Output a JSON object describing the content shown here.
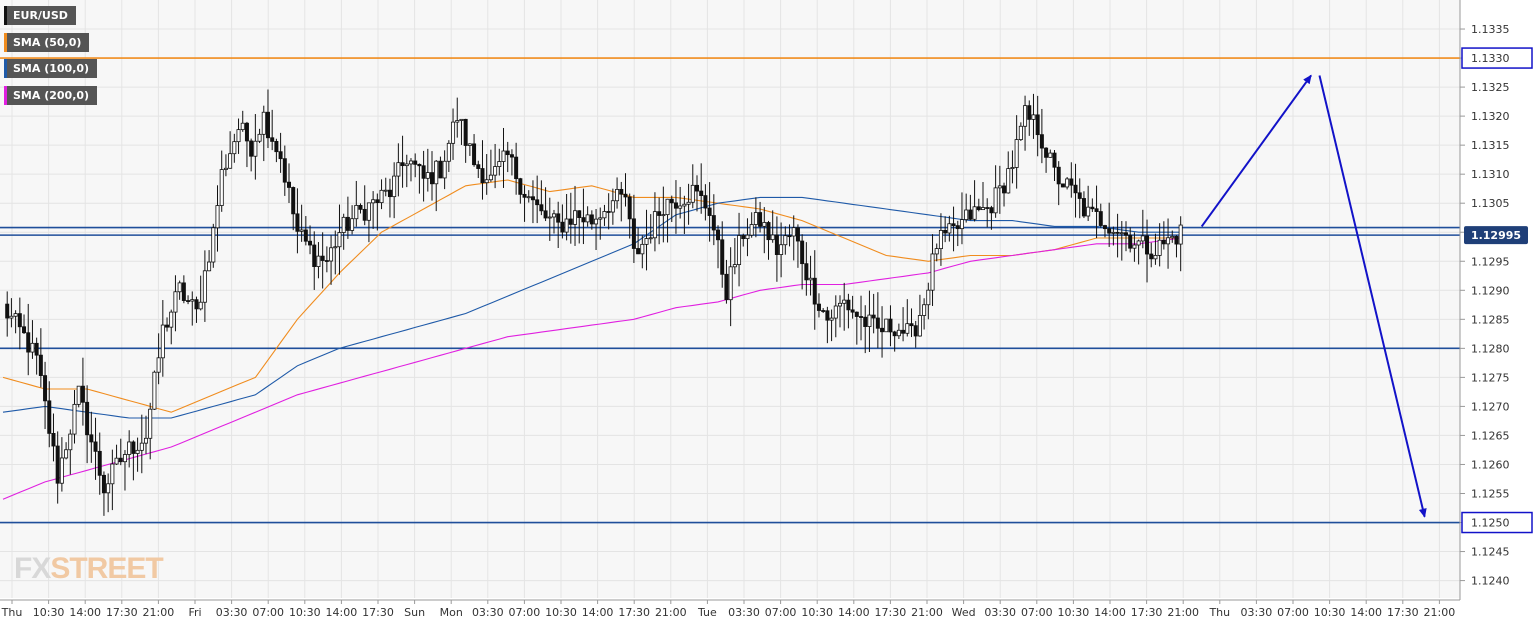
{
  "chart_data": {
    "type": "candlestick",
    "symbol": "EUR/USD",
    "last_price": "1.12995",
    "ylim": [
      1.1237,
      1.134
    ],
    "y_ticks": [
      "1.1335",
      "1.1330",
      "1.1325",
      "1.1320",
      "1.1315",
      "1.1310",
      "1.1305",
      "1.1300",
      "1.1295",
      "1.1290",
      "1.1285",
      "1.1280",
      "1.1275",
      "1.1270",
      "1.1265",
      "1.1260",
      "1.1255",
      "1.1250",
      "1.1245",
      "1.1240"
    ],
    "highlighted_ticks": [
      "1.1330",
      "1.1250"
    ],
    "x_ticks": [
      "Thu",
      "10:30",
      "14:00",
      "17:30",
      "21:00",
      "Fri",
      "03:30",
      "07:00",
      "10:30",
      "14:00",
      "17:30",
      "Sun",
      "Mon",
      "03:30",
      "07:00",
      "10:30",
      "14:00",
      "17:30",
      "21:00",
      "Tue",
      "03:30",
      "07:00",
      "10:30",
      "14:00",
      "17:30",
      "21:00",
      "Wed",
      "03:30",
      "07:00",
      "10:30",
      "14:00",
      "17:30",
      "21:00",
      "Thu",
      "03:30",
      "07:00",
      "10:30",
      "14:00",
      "17:30",
      "21:00"
    ],
    "legend": [
      {
        "label": "EUR/USD",
        "color": "#111111"
      },
      {
        "label": "SMA (50,0)",
        "color": "#f08c1e"
      },
      {
        "label": "SMA (100,0)",
        "color": "#1f5aa8"
      },
      {
        "label": "SMA (200,0)",
        "color": "#e020e0"
      }
    ],
    "horizontal_levels": [
      {
        "price": 1.133,
        "color": "#f08c1e"
      },
      {
        "price": 1.13008,
        "color": "#1f4e9a"
      },
      {
        "price": 1.12995,
        "color": "#1f4e9a"
      },
      {
        "price": 1.128,
        "color": "#1f4e9a"
      },
      {
        "price": 1.125,
        "color": "#1f4e9a"
      }
    ],
    "anchors": [
      [
        0,
        1.1287
      ],
      [
        5,
        1.1282
      ],
      [
        8,
        1.1278
      ],
      [
        13,
        1.1258
      ],
      [
        18,
        1.1272
      ],
      [
        24,
        1.1256
      ],
      [
        29,
        1.1262
      ],
      [
        34,
        1.1265
      ],
      [
        38,
        1.1283
      ],
      [
        42,
        1.129
      ],
      [
        46,
        1.1286
      ],
      [
        50,
        1.13
      ],
      [
        52,
        1.131
      ],
      [
        56,
        1.1318
      ],
      [
        59,
        1.1315
      ],
      [
        62,
        1.132
      ],
      [
        66,
        1.1313
      ],
      [
        70,
        1.13
      ],
      [
        74,
        1.1296
      ],
      [
        77,
        1.1295
      ],
      [
        80,
        1.13
      ],
      [
        84,
        1.1303
      ],
      [
        88,
        1.1305
      ],
      [
        92,
        1.1307
      ],
      [
        96,
        1.1313
      ],
      [
        100,
        1.1309
      ],
      [
        104,
        1.1311
      ],
      [
        108,
        1.132
      ],
      [
        112,
        1.1312
      ],
      [
        116,
        1.1309
      ],
      [
        120,
        1.1313
      ],
      [
        124,
        1.1307
      ],
      [
        128,
        1.1303
      ],
      [
        132,
        1.1301
      ],
      [
        136,
        1.1303
      ],
      [
        140,
        1.1302
      ],
      [
        144,
        1.1305
      ],
      [
        148,
        1.1306
      ],
      [
        150,
        1.1296
      ],
      [
        153,
        1.1299
      ],
      [
        157,
        1.1305
      ],
      [
        161,
        1.1306
      ],
      [
        164,
        1.1307
      ],
      [
        168,
        1.1304
      ],
      [
        172,
        1.129
      ],
      [
        176,
        1.13
      ],
      [
        180,
        1.1302
      ],
      [
        184,
        1.1297
      ],
      [
        188,
        1.13
      ],
      [
        192,
        1.1291
      ],
      [
        196,
        1.1285
      ],
      [
        200,
        1.1288
      ],
      [
        204,
        1.1285
      ],
      [
        208,
        1.1283
      ],
      [
        212,
        1.1284
      ],
      [
        216,
        1.1282
      ],
      [
        219,
        1.1288
      ],
      [
        222,
        1.1298
      ],
      [
        226,
        1.13
      ],
      [
        230,
        1.1303
      ],
      [
        234,
        1.1304
      ],
      [
        237,
        1.1307
      ],
      [
        240,
        1.1312
      ],
      [
        243,
        1.132
      ],
      [
        246,
        1.1318
      ],
      [
        250,
        1.131
      ],
      [
        254,
        1.1307
      ],
      [
        258,
        1.1303
      ],
      [
        262,
        1.1302
      ],
      [
        266,
        1.13
      ],
      [
        270,
        1.1298
      ],
      [
        274,
        1.1297
      ],
      [
        280,
        1.13
      ]
    ],
    "sma50": [
      [
        0,
        1.1275
      ],
      [
        10,
        1.1273
      ],
      [
        20,
        1.1273
      ],
      [
        30,
        1.1271
      ],
      [
        40,
        1.1269
      ],
      [
        50,
        1.1272
      ],
      [
        60,
        1.1275
      ],
      [
        70,
        1.1285
      ],
      [
        80,
        1.1293
      ],
      [
        90,
        1.13
      ],
      [
        100,
        1.1304
      ],
      [
        110,
        1.1308
      ],
      [
        120,
        1.1309
      ],
      [
        130,
        1.1307
      ],
      [
        140,
        1.1308
      ],
      [
        150,
        1.1306
      ],
      [
        160,
        1.1306
      ],
      [
        170,
        1.1305
      ],
      [
        180,
        1.1304
      ],
      [
        190,
        1.1302
      ],
      [
        200,
        1.1299
      ],
      [
        210,
        1.1296
      ],
      [
        220,
        1.1295
      ],
      [
        230,
        1.1296
      ],
      [
        240,
        1.1296
      ],
      [
        250,
        1.1297
      ],
      [
        260,
        1.1299
      ],
      [
        270,
        1.1299
      ],
      [
        280,
        1.1299
      ]
    ],
    "sma100": [
      [
        0,
        1.1269
      ],
      [
        10,
        1.127
      ],
      [
        20,
        1.1269
      ],
      [
        30,
        1.1268
      ],
      [
        40,
        1.1268
      ],
      [
        50,
        1.127
      ],
      [
        60,
        1.1272
      ],
      [
        70,
        1.1277
      ],
      [
        80,
        1.128
      ],
      [
        90,
        1.1282
      ],
      [
        100,
        1.1284
      ],
      [
        110,
        1.1286
      ],
      [
        120,
        1.1289
      ],
      [
        130,
        1.1292
      ],
      [
        140,
        1.1295
      ],
      [
        150,
        1.1298
      ],
      [
        160,
        1.1303
      ],
      [
        170,
        1.1305
      ],
      [
        180,
        1.1306
      ],
      [
        190,
        1.1306
      ],
      [
        200,
        1.1305
      ],
      [
        210,
        1.1304
      ],
      [
        220,
        1.1303
      ],
      [
        230,
        1.1302
      ],
      [
        240,
        1.1302
      ],
      [
        250,
        1.1301
      ],
      [
        260,
        1.1301
      ],
      [
        270,
        1.13
      ],
      [
        280,
        1.13
      ]
    ],
    "sma200": [
      [
        0,
        1.1254
      ],
      [
        10,
        1.1257
      ],
      [
        20,
        1.1259
      ],
      [
        30,
        1.1261
      ],
      [
        40,
        1.1263
      ],
      [
        50,
        1.1266
      ],
      [
        60,
        1.1269
      ],
      [
        70,
        1.1272
      ],
      [
        80,
        1.1274
      ],
      [
        90,
        1.1276
      ],
      [
        100,
        1.1278
      ],
      [
        110,
        1.128
      ],
      [
        120,
        1.1282
      ],
      [
        130,
        1.1283
      ],
      [
        140,
        1.1284
      ],
      [
        150,
        1.1285
      ],
      [
        160,
        1.1287
      ],
      [
        170,
        1.1288
      ],
      [
        180,
        1.129
      ],
      [
        190,
        1.1291
      ],
      [
        200,
        1.1291
      ],
      [
        210,
        1.1292
      ],
      [
        220,
        1.1293
      ],
      [
        230,
        1.1295
      ],
      [
        240,
        1.1296
      ],
      [
        250,
        1.1297
      ],
      [
        260,
        1.1298
      ],
      [
        270,
        1.1298
      ],
      [
        280,
        1.1299
      ]
    ],
    "arrows": [
      {
        "from": [
          285,
          1.1301
        ],
        "to": [
          311,
          1.1327
        ],
        "color": "#1212c8"
      },
      {
        "from": [
          313,
          1.1327
        ],
        "to": [
          338,
          1.1251
        ],
        "color": "#1212c8"
      }
    ],
    "grid": true
  },
  "watermark": {
    "part1": "FX",
    "part2": "STREET"
  }
}
